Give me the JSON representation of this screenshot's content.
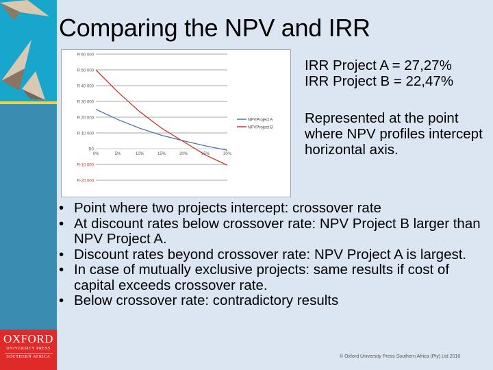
{
  "slide": {
    "title": "Comparing the NPV and IRR",
    "irr_lines": [
      "IRR Project A = 27,27%",
      "IRR Project B = 22,47%"
    ],
    "note": "Represented at the point where NPV profiles intercept horizontal axis.",
    "bullets": [
      "Point where two projects intercept: crossover rate",
      "At discount rates below crossover rate: NPV Project B larger than NPV Project A.",
      "Discount rates beyond crossover rate: NPV Project A is largest.",
      "In case of mutually exclusive projects: same results if cost of capital exceeds crossover rate.",
      "Below crossover rate: contradictory results"
    ],
    "bullet_glyph": "•",
    "copyright": "© Oxford University Press Southern Africa (Pty) Ltd 2010"
  },
  "branding": {
    "publisher": "OXFORD",
    "publisher_sub": "UNIVERSITY PRESS",
    "region": "SOUTHERN AFRICA",
    "colors": {
      "sky": "#19a6cc",
      "sidebar": "#3a8cb0",
      "gold": "#ecd54a",
      "oxford_red": "#e02a2a",
      "background": "#dbe6f2"
    }
  },
  "chart_data": {
    "type": "line",
    "title": "",
    "xlabel": "",
    "ylabel": "",
    "categories": [
      "0%",
      "5%",
      "10%",
      "15%",
      "20%",
      "25%",
      "30%"
    ],
    "x": [
      0,
      5,
      10,
      15,
      20,
      25,
      30
    ],
    "series": [
      {
        "name": "NPVProject A",
        "color": "#4a74b0",
        "values": [
          25000,
          18500,
          13000,
          8500,
          5000,
          1800,
          -1000
        ]
      },
      {
        "name": "NPVProject B",
        "color": "#c0392b",
        "values": [
          50000,
          36000,
          23500,
          13000,
          4500,
          -4000,
          -10500
        ]
      }
    ],
    "yticks": [
      "R 60 000",
      "R 50 000",
      "R 40 000",
      "R 30 000",
      "R 20 000",
      "R 10 000",
      "R0",
      "R-10 000",
      "R-20 000"
    ],
    "ylim": [
      -20000,
      60000
    ],
    "grid": true,
    "legend_position": "right",
    "annotations": {
      "crossover_rate_approx": "≈20%",
      "irr_a": "27,27%",
      "irr_b": "22,47%"
    }
  }
}
